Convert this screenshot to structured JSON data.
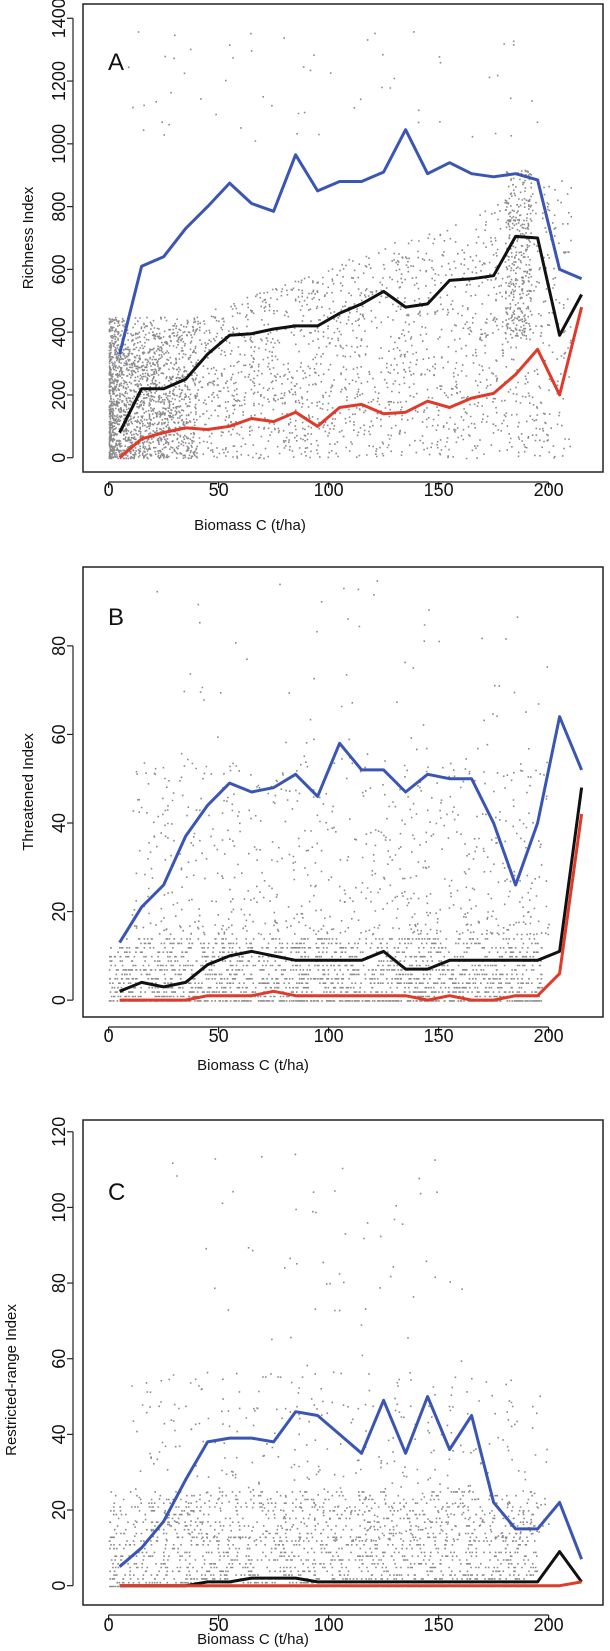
{
  "chart_data": [
    {
      "type": "scatter",
      "panel_label": "A",
      "xlabel": "Biomass C (t/ha)",
      "ylabel": "Richness Index",
      "xlim": [
        -8,
        222
      ],
      "ylim": [
        -20,
        1420
      ],
      "xticks": [
        0,
        50,
        100,
        150,
        200
      ],
      "yticks": [
        0,
        200,
        400,
        600,
        800,
        1000,
        1200,
        1400
      ],
      "grid": false,
      "x": [
        5,
        15,
        25,
        35,
        45,
        55,
        65,
        75,
        85,
        95,
        105,
        115,
        125,
        135,
        145,
        155,
        165,
        175,
        185,
        195,
        205,
        215
      ],
      "series": [
        {
          "color": "#3a55b4",
          "values": [
            330,
            610,
            640,
            730,
            800,
            875,
            810,
            785,
            965,
            850,
            880,
            880,
            910,
            1045,
            905,
            940,
            905,
            895,
            905,
            885,
            600,
            570
          ]
        },
        {
          "color": "#111111",
          "values": [
            80,
            220,
            220,
            250,
            330,
            390,
            395,
            410,
            420,
            420,
            460,
            490,
            530,
            480,
            490,
            565,
            570,
            580,
            705,
            700,
            390,
            520
          ]
        },
        {
          "color": "#e03a2a",
          "values": [
            0,
            60,
            80,
            95,
            90,
            100,
            125,
            115,
            145,
            100,
            160,
            170,
            140,
            145,
            180,
            160,
            190,
            205,
            265,
            345,
            200,
            480
          ]
        }
      ],
      "scatter_points": "dense grey points spanning biomass 0-215 t/ha; densest below 50 t/ha and 0-500 index"
    },
    {
      "type": "scatter",
      "panel_label": "B",
      "xlabel": "Biomass C (t/ha)",
      "ylabel": "Threatened Index",
      "xlim": [
        -8,
        222
      ],
      "ylim": [
        -2,
        96
      ],
      "xticks": [
        0,
        50,
        100,
        150,
        200
      ],
      "yticks": [
        0,
        20,
        40,
        60,
        80
      ],
      "grid": false,
      "x": [
        5,
        15,
        25,
        35,
        45,
        55,
        65,
        75,
        85,
        95,
        105,
        115,
        125,
        135,
        145,
        155,
        165,
        175,
        185,
        195,
        205,
        215
      ],
      "series": [
        {
          "color": "#3a55b4",
          "values": [
            13,
            21,
            26,
            37,
            44,
            49,
            47,
            48,
            51,
            46,
            58,
            52,
            52,
            47,
            51,
            50,
            50,
            40,
            26,
            40,
            64,
            52
          ]
        },
        {
          "color": "#111111",
          "values": [
            2,
            4,
            3,
            4,
            8,
            10,
            11,
            10,
            9,
            9,
            9,
            9,
            11,
            7,
            7,
            9,
            9,
            9,
            9,
            9,
            11,
            48
          ]
        },
        {
          "color": "#e03a2a",
          "values": [
            0,
            0,
            0,
            0,
            1,
            1,
            1,
            2,
            1,
            1,
            1,
            1,
            1,
            1,
            0,
            1,
            0,
            0,
            1,
            1,
            6,
            42
          ]
        }
      ],
      "scatter_points": "grey points in horizontal bands at integer index values 0-14, sparse points up to about 95"
    },
    {
      "type": "scatter",
      "panel_label": "C",
      "xlabel": "Biomass C (t/ha)",
      "ylabel": "Restricted-range Index",
      "xlim": [
        -8,
        222
      ],
      "ylim": [
        -3,
        121
      ],
      "xticks": [
        0,
        50,
        100,
        150,
        200
      ],
      "yticks": [
        0,
        20,
        40,
        60,
        80,
        100,
        120
      ],
      "grid": false,
      "x": [
        5,
        15,
        25,
        35,
        45,
        55,
        65,
        75,
        85,
        95,
        105,
        115,
        125,
        135,
        145,
        155,
        165,
        175,
        185,
        195,
        205,
        215
      ],
      "series": [
        {
          "color": "#3a55b4",
          "values": [
            5,
            10,
            17,
            28,
            38,
            39,
            39,
            38,
            46,
            45,
            40,
            35,
            49,
            35,
            50,
            36,
            45,
            22,
            15,
            15,
            22,
            7
          ]
        },
        {
          "color": "#111111",
          "values": [
            0,
            0,
            0,
            0,
            1,
            1,
            2,
            2,
            2,
            1,
            1,
            1,
            1,
            1,
            1,
            1,
            1,
            1,
            1,
            1,
            9,
            1
          ]
        },
        {
          "color": "#e03a2a",
          "values": [
            0,
            0,
            0,
            0,
            0,
            0,
            0,
            0,
            0,
            0,
            0,
            0,
            0,
            0,
            0,
            0,
            0,
            0,
            0,
            0,
            0,
            1
          ]
        }
      ],
      "scatter_points": "grey points mostly 0-25 index in horizontal bands, sparse points up to about 117"
    }
  ]
}
